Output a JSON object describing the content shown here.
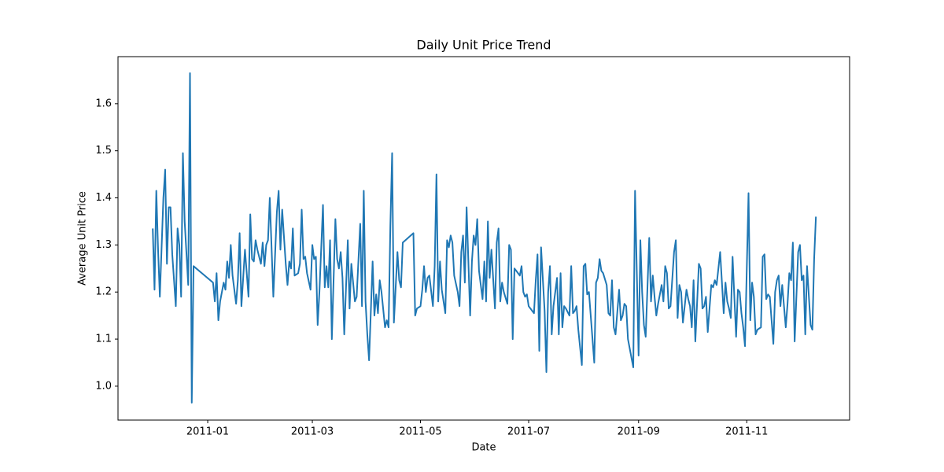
{
  "chart_data": {
    "type": "line",
    "title": "Daily Unit Price Trend",
    "x_label": "Date",
    "y_label": "Average Unit Price",
    "x": [
      -31,
      -30,
      -29,
      -28,
      -27,
      -25,
      -24,
      -23,
      -22,
      -21,
      -20,
      -18,
      -17,
      -16,
      -15,
      -14,
      -13,
      -11,
      -10,
      -9,
      -8,
      3,
      4,
      5,
      6,
      7,
      9,
      10,
      11,
      12,
      13,
      14,
      16,
      17,
      18,
      19,
      20,
      21,
      23,
      24,
      25,
      26,
      27,
      28,
      30,
      31,
      32,
      33,
      34,
      35,
      37,
      38,
      39,
      40,
      41,
      42,
      44,
      45,
      46,
      47,
      48,
      49,
      51,
      52,
      53,
      54,
      55,
      56,
      58,
      59,
      60,
      61,
      62,
      63,
      65,
      66,
      67,
      68,
      69,
      70,
      72,
      73,
      74,
      75,
      76,
      77,
      79,
      80,
      81,
      82,
      83,
      84,
      86,
      87,
      88,
      89,
      90,
      91,
      93,
      94,
      95,
      96,
      97,
      98,
      100,
      101,
      102,
      103,
      104,
      105,
      107,
      108,
      109,
      110,
      116,
      117,
      118,
      120,
      121,
      122,
      123,
      124,
      125,
      127,
      128,
      129,
      130,
      131,
      132,
      134,
      135,
      136,
      137,
      138,
      139,
      141,
      142,
      143,
      144,
      145,
      146,
      148,
      149,
      150,
      151,
      152,
      153,
      155,
      156,
      157,
      158,
      159,
      160,
      162,
      163,
      164,
      165,
      166,
      167,
      169,
      170,
      171,
      172,
      173,
      174,
      176,
      177,
      178,
      179,
      180,
      181,
      183,
      184,
      185,
      186,
      187,
      188,
      190,
      191,
      192,
      193,
      194,
      195,
      197,
      198,
      199,
      200,
      201,
      202,
      204,
      205,
      206,
      207,
      208,
      209,
      211,
      212,
      213,
      214,
      215,
      216,
      218,
      219,
      220,
      221,
      222,
      223,
      225,
      226,
      227,
      228,
      229,
      230,
      232,
      233,
      234,
      235,
      236,
      237,
      239,
      240,
      241,
      243,
      244,
      245,
      246,
      247,
      249,
      250,
      251,
      252,
      253,
      254,
      256,
      257,
      258,
      259,
      260,
      261,
      263,
      264,
      265,
      266,
      267,
      268,
      270,
      271,
      272,
      273,
      274,
      275,
      277,
      278,
      279,
      280,
      281,
      282,
      284,
      285,
      286,
      287,
      288,
      289,
      291,
      292,
      293,
      294,
      295,
      296,
      298,
      299,
      300,
      301,
      302,
      303,
      305,
      306,
      307,
      308,
      309,
      310,
      312,
      313,
      314,
      315,
      316,
      317,
      319,
      320,
      321,
      322,
      323,
      324,
      326,
      327,
      328,
      329,
      330,
      331,
      333,
      334,
      335,
      336,
      337,
      338,
      340,
      341,
      342,
      343
    ],
    "values": [
      1.335,
      1.205,
      1.415,
      1.29,
      1.19,
      1.4,
      1.46,
      1.26,
      1.38,
      1.38,
      1.28,
      1.17,
      1.335,
      1.3,
      1.19,
      1.495,
      1.35,
      1.215,
      1.665,
      0.965,
      1.255,
      1.22,
      1.18,
      1.24,
      1.14,
      1.18,
      1.22,
      1.205,
      1.265,
      1.23,
      1.3,
      1.235,
      1.175,
      1.225,
      1.325,
      1.17,
      1.23,
      1.29,
      1.19,
      1.365,
      1.27,
      1.265,
      1.31,
      1.29,
      1.26,
      1.305,
      1.255,
      1.3,
      1.31,
      1.4,
      1.19,
      1.28,
      1.37,
      1.415,
      1.29,
      1.375,
      1.26,
      1.215,
      1.265,
      1.25,
      1.335,
      1.235,
      1.24,
      1.26,
      1.375,
      1.27,
      1.275,
      1.24,
      1.205,
      1.3,
      1.27,
      1.275,
      1.13,
      1.2,
      1.385,
      1.21,
      1.255,
      1.21,
      1.31,
      1.1,
      1.355,
      1.27,
      1.25,
      1.285,
      1.23,
      1.11,
      1.31,
      1.165,
      1.26,
      1.22,
      1.18,
      1.19,
      1.345,
      1.17,
      1.415,
      1.18,
      1.11,
      1.055,
      1.265,
      1.15,
      1.195,
      1.155,
      1.225,
      1.2,
      1.125,
      1.14,
      1.125,
      1.34,
      1.495,
      1.135,
      1.285,
      1.225,
      1.21,
      1.305,
      1.325,
      1.15,
      1.165,
      1.17,
      1.205,
      1.255,
      1.2,
      1.23,
      1.235,
      1.17,
      1.255,
      1.45,
      1.18,
      1.265,
      1.205,
      1.155,
      1.31,
      1.295,
      1.32,
      1.305,
      1.235,
      1.2,
      1.17,
      1.285,
      1.32,
      1.22,
      1.38,
      1.15,
      1.265,
      1.32,
      1.3,
      1.355,
      1.245,
      1.185,
      1.265,
      1.18,
      1.35,
      1.23,
      1.29,
      1.165,
      1.305,
      1.335,
      1.18,
      1.22,
      1.2,
      1.175,
      1.3,
      1.29,
      1.1,
      1.25,
      1.245,
      1.235,
      1.255,
      1.2,
      1.19,
      1.195,
      1.17,
      1.16,
      1.155,
      1.225,
      1.28,
      1.075,
      1.295,
      1.16,
      1.03,
      1.2,
      1.255,
      1.11,
      1.17,
      1.23,
      1.11,
      1.24,
      1.125,
      1.17,
      1.165,
      1.15,
      1.255,
      1.155,
      1.16,
      1.17,
      1.12,
      1.045,
      1.255,
      1.26,
      1.195,
      1.2,
      1.15,
      1.05,
      1.22,
      1.23,
      1.27,
      1.245,
      1.24,
      1.215,
      1.155,
      1.15,
      1.225,
      1.125,
      1.11,
      1.205,
      1.14,
      1.15,
      1.175,
      1.17,
      1.1,
      1.06,
      1.04,
      1.415,
      1.065,
      1.31,
      1.2,
      1.13,
      1.105,
      1.315,
      1.18,
      1.235,
      1.19,
      1.15,
      1.175,
      1.215,
      1.18,
      1.255,
      1.24,
      1.165,
      1.17,
      1.285,
      1.31,
      1.145,
      1.215,
      1.2,
      1.135,
      1.205,
      1.185,
      1.17,
      1.125,
      1.225,
      1.095,
      1.26,
      1.25,
      1.165,
      1.17,
      1.19,
      1.115,
      1.215,
      1.21,
      1.225,
      1.215,
      1.25,
      1.285,
      1.155,
      1.22,
      1.18,
      1.165,
      1.145,
      1.275,
      1.105,
      1.205,
      1.2,
      1.155,
      1.125,
      1.085,
      1.41,
      1.14,
      1.22,
      1.19,
      1.11,
      1.12,
      1.125,
      1.275,
      1.28,
      1.185,
      1.195,
      1.19,
      1.09,
      1.2,
      1.225,
      1.235,
      1.17,
      1.215,
      1.125,
      1.175,
      1.24,
      1.225,
      1.305,
      1.095,
      1.285,
      1.3,
      1.225,
      1.235,
      1.11,
      1.255,
      1.13,
      1.12,
      1.27,
      1.36
    ],
    "color": "#1f77b4",
    "xlim": [
      -50.6,
      362
    ],
    "ylim": [
      0.928,
      1.7
    ],
    "xticks": [
      {
        "value": 0,
        "label": "2011-01"
      },
      {
        "value": 59,
        "label": "2011-03"
      },
      {
        "value": 120,
        "label": "2011-05"
      },
      {
        "value": 181,
        "label": "2011-07"
      },
      {
        "value": 243,
        "label": "2011-09"
      },
      {
        "value": 304,
        "label": "2011-11"
      }
    ],
    "yticks": [
      {
        "value": 1,
        "label": "1.0"
      },
      1.1,
      1.2,
      1.3,
      1.4,
      1.5,
      1.6
    ],
    "grid": false
  }
}
